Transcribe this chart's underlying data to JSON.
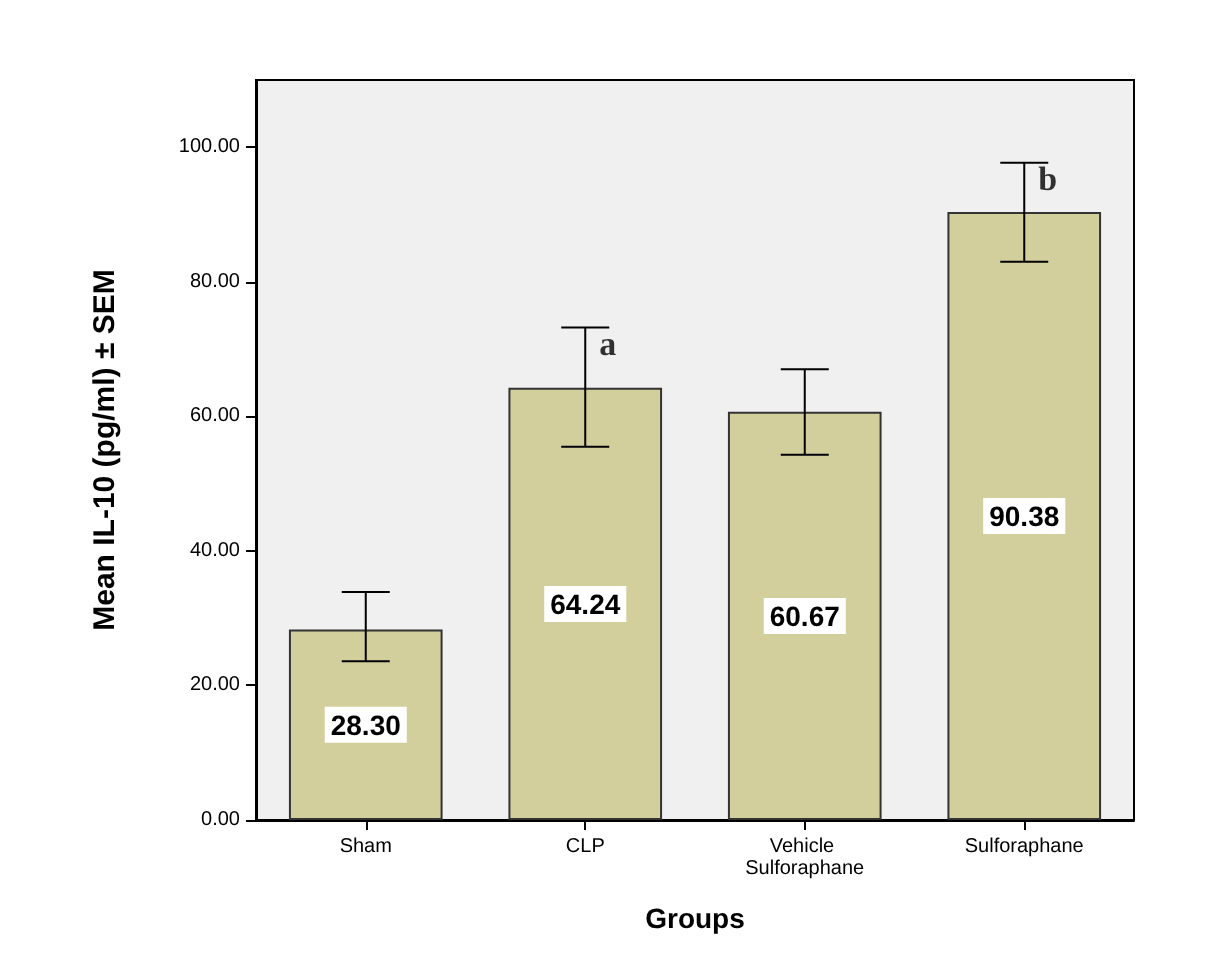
{
  "chart_data": {
    "type": "bar",
    "xlabel": "Groups",
    "ylabel": "Mean IL-10 (pg/ml) ± SEM",
    "categories": [
      "Sham",
      "CLP",
      "Vehicle Sulforaphane",
      "Sulforaphane"
    ],
    "values": [
      28.3,
      64.24,
      60.67,
      90.38
    ],
    "errors": [
      [
        23.6,
        33.9
      ],
      [
        55.5,
        73.2
      ],
      [
        54.3,
        67.0
      ],
      [
        83.0,
        97.7
      ]
    ],
    "color": "#d3cf9c",
    "ylim": [
      0,
      110
    ],
    "yticks": [
      {
        "value": 0,
        "label": "0.00"
      },
      {
        "value": 20,
        "label": "20.00"
      },
      {
        "value": 40,
        "label": "40.00"
      },
      {
        "value": 60,
        "label": "60.00"
      },
      {
        "value": 80,
        "label": "80.00"
      },
      {
        "value": 100,
        "label": "100.00"
      }
    ],
    "value_labels": [
      "28.30",
      "64.24",
      "60.67",
      "90.38"
    ],
    "grid": false,
    "annotations": [
      {
        "text": "a",
        "x": "CLP",
        "y": 73.2
      },
      {
        "text": "b",
        "x": "Sulforaphane",
        "y": 97.7
      }
    ]
  }
}
